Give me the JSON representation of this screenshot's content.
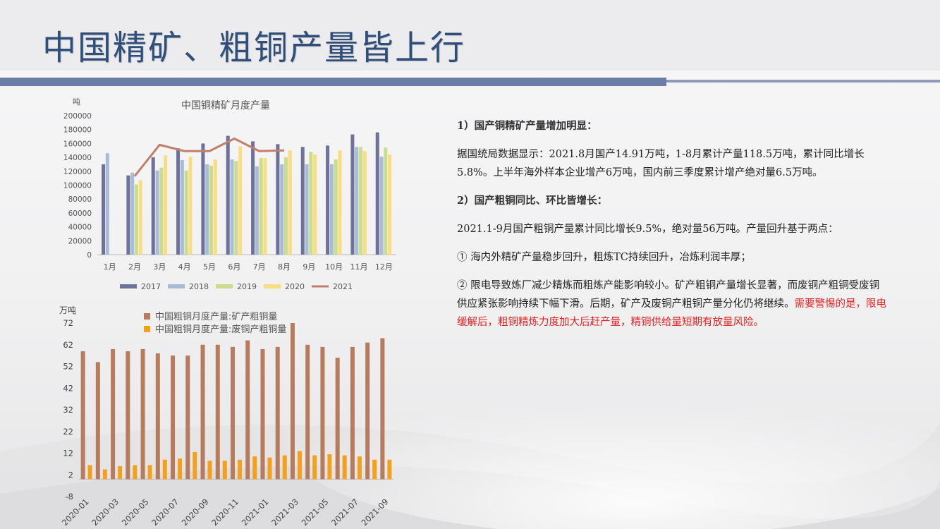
{
  "page": {
    "title": "中国精矿、粗铜产量皆上行"
  },
  "chart_data": [
    {
      "type": "bar",
      "title": "中国铜精矿月度产量",
      "ylabel": "吨",
      "ylim": [
        0,
        200000
      ],
      "yticks": [
        "200000",
        "180000",
        "160000",
        "140000",
        "120000",
        "100000",
        "80000",
        "60000",
        "40000",
        "20000",
        "0"
      ],
      "categories": [
        "1月",
        "2月",
        "3月",
        "4月",
        "5月",
        "6月",
        "7月",
        "8月",
        "9月",
        "10月",
        "11月",
        "12月"
      ],
      "series": [
        {
          "name": "2017",
          "kind": "bar",
          "color": "#6e7199",
          "values": [
            130000,
            114000,
            140000,
            153000,
            160000,
            171000,
            163000,
            159000,
            155000,
            157000,
            173000,
            176000
          ]
        },
        {
          "name": "2018",
          "kind": "bar",
          "color": "#a9bcd6",
          "values": [
            146000,
            118000,
            121000,
            136000,
            130000,
            137000,
            127000,
            130000,
            130000,
            130000,
            155000,
            141000
          ]
        },
        {
          "name": "2019",
          "kind": "bar",
          "color": "#c9dd8c",
          "values": [
            null,
            101000,
            125000,
            121000,
            128000,
            135000,
            139000,
            140000,
            148000,
            137000,
            155000,
            154000
          ]
        },
        {
          "name": "2020",
          "kind": "bar",
          "color": "#f9dd82",
          "values": [
            null,
            107000,
            143000,
            141000,
            137000,
            156000,
            139000,
            150000,
            144000,
            150000,
            149000,
            144000
          ]
        },
        {
          "name": "2021",
          "kind": "line",
          "color": "#c0806a",
          "values": [
            null,
            113000,
            158000,
            149000,
            149000,
            167000,
            149000,
            150000,
            null,
            null,
            null,
            null
          ]
        }
      ],
      "legend_position": "bottom"
    },
    {
      "type": "bar",
      "ylabel": "万吨",
      "ylim": [
        -8,
        72
      ],
      "yticks": [
        "72",
        "62",
        "52",
        "42",
        "32",
        "22",
        "12",
        "2",
        "-8"
      ],
      "categories": [
        "2020-01",
        "2020-02",
        "2020-03",
        "2020-04",
        "2020-05",
        "2020-06",
        "2020-07",
        "2020-08",
        "2020-09",
        "2020-10",
        "2020-11",
        "2020-12",
        "2021-01",
        "2021-02",
        "2021-03",
        "2021-04",
        "2021-05",
        "2021-06",
        "2021-07",
        "2021-08",
        "2021-09"
      ],
      "xtick_labels": [
        "2020-01",
        "",
        "2020-03",
        "",
        "2020-05",
        "",
        "2020-07",
        "",
        "2020-09",
        "",
        "2020-11",
        "",
        "2021-01",
        "",
        "2021-03",
        "",
        "2021-05",
        "",
        "2021-07",
        "",
        "2021-09"
      ],
      "series": [
        {
          "name": "中国粗铜月度产量:矿产粗铜量",
          "color": "#b77b5e",
          "values": [
            59,
            54,
            60,
            59,
            60,
            58,
            57,
            57,
            62,
            62,
            61,
            64,
            60,
            61,
            72,
            62,
            61,
            56,
            61,
            63,
            65
          ]
        },
        {
          "name": "中国粗铜月度产量:废铜产粗铜量",
          "color": "#f5a01a",
          "values": [
            6.5,
            4.5,
            6,
            6.5,
            6.5,
            9,
            9.5,
            12.5,
            8.5,
            8.5,
            9,
            10.5,
            10,
            11,
            13,
            11,
            11.5,
            11,
            10.5,
            9,
            9
          ]
        }
      ],
      "legend_position": "top-left"
    }
  ],
  "text": {
    "p1_heading": "1）国产铜精矿产量增加明显：",
    "p1_body": "据国统局数据显示：2021.8月国产14.91万吨，1-8月累计产量118.5万吨，累计同比增长5.8%。上半年海外样本企业增产6万吨，国内前三季度累计增产绝对量6.5万吨。",
    "p2_heading": "2）国产粗铜同比、环比皆增长：",
    "p2_body": "2021.1-9月国产粗铜产量累计同比增长9.5%，绝对量56万吨。产量回升基于两点：",
    "p3": "① 海内外精矿产量稳步回升，粗炼TC持续回升，冶炼利润丰厚；",
    "p4_normal": "② 限电导致炼厂减少精炼而粗炼产能影响较小。矿产粗铜产量增长显著，而废铜产粗铜受废铜供应紧张影响持续下幅下滑。后期，矿产及废铜产粗铜产量分化仍将继续。",
    "p4_red": "需要警惕的是，限电缓解后，粗铜精炼力度加大后赶产量，精铜供给量短期有放量风险。"
  }
}
